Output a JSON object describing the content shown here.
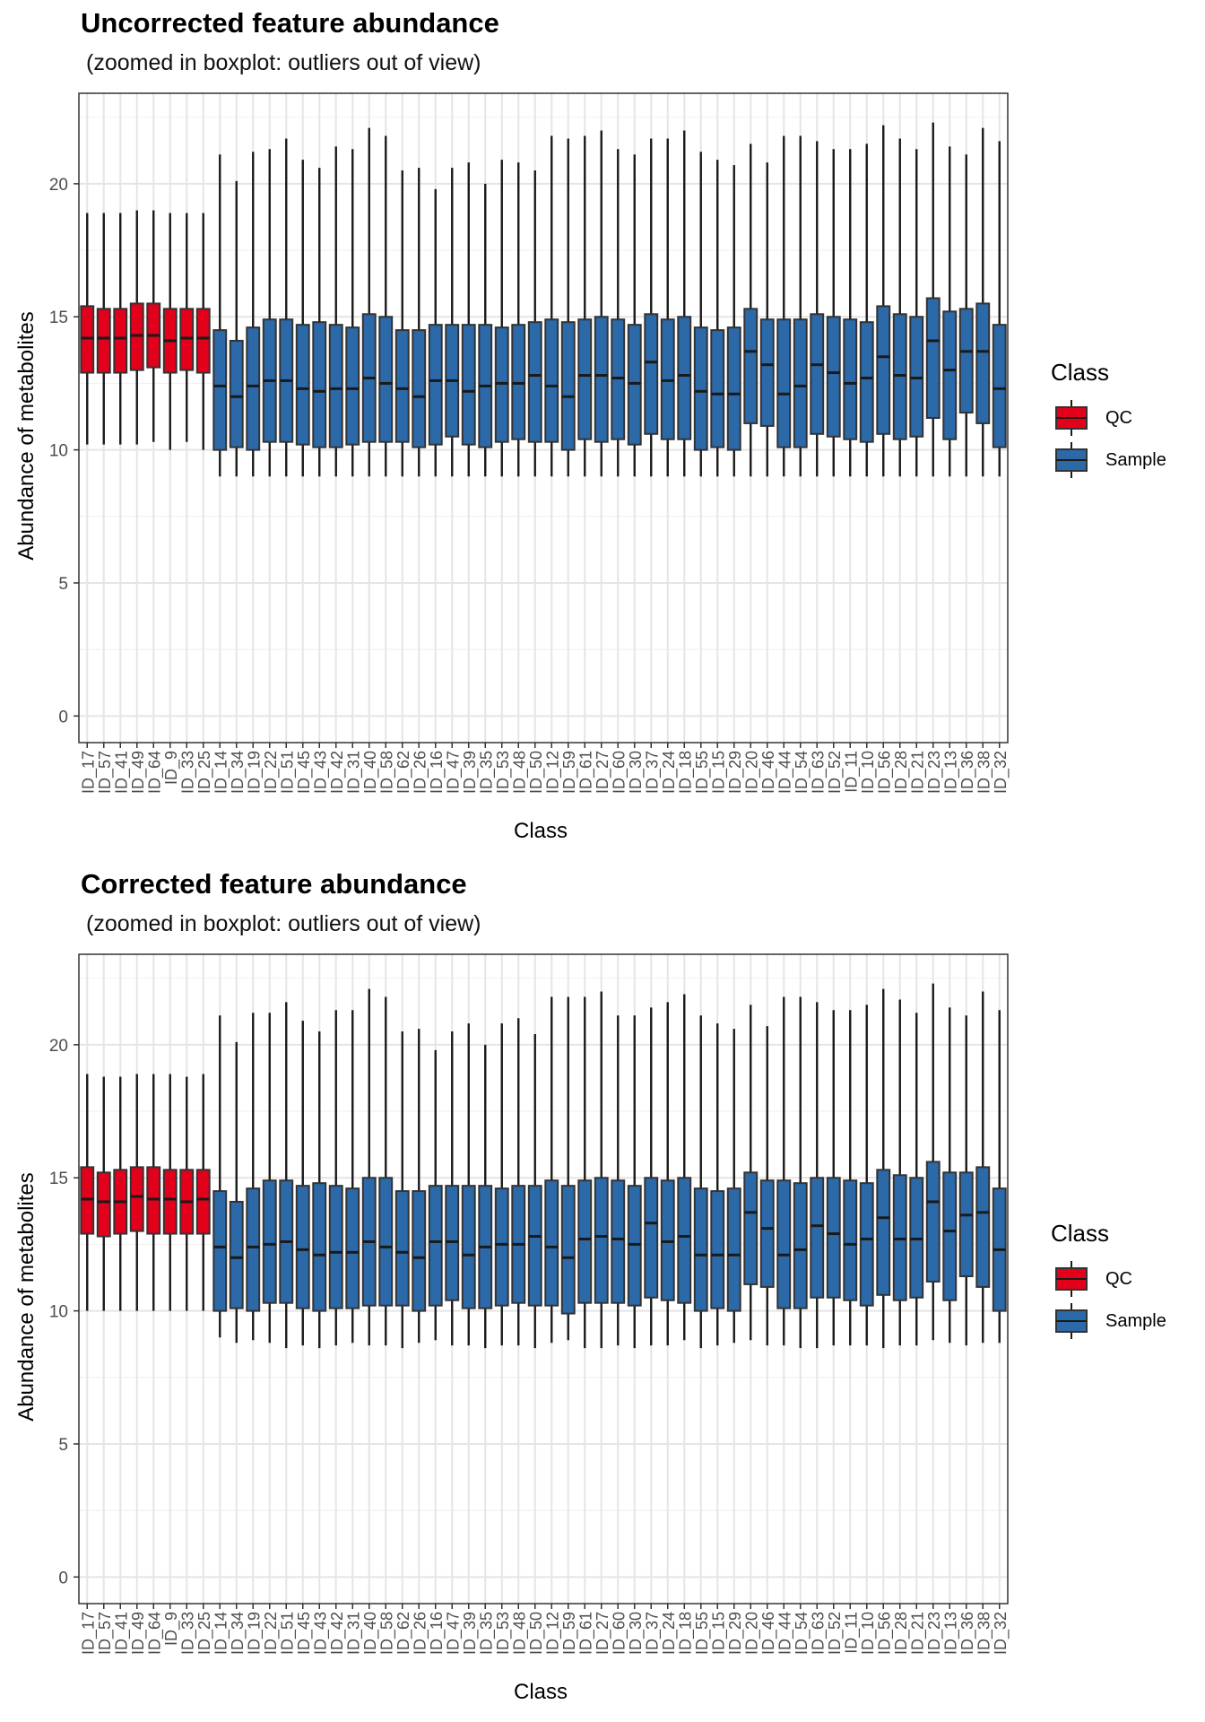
{
  "charts": [
    {
      "title": "Uncorrected feature abundance",
      "subtitle": "(zoomed in boxplot: outliers out of view)",
      "chart_data": {
        "type": "boxplot",
        "xlabel": "Class",
        "ylabel": "Abundance of metabolites",
        "ylim": [
          -1,
          23.4
        ],
        "yticks": [
          0,
          5,
          10,
          15,
          20
        ],
        "grid": true,
        "legend": {
          "title": "Class",
          "position": "right",
          "entries": [
            {
              "label": "QC",
              "color": "#e3001b"
            },
            {
              "label": "Sample",
              "color": "#2b69a9"
            }
          ]
        },
        "categories": [
          "ID_17",
          "ID_57",
          "ID_41",
          "ID_49",
          "ID_64",
          "ID_9",
          "ID_33",
          "ID_25",
          "ID_14",
          "ID_34",
          "ID_19",
          "ID_22",
          "ID_51",
          "ID_45",
          "ID_43",
          "ID_42",
          "ID_31",
          "ID_40",
          "ID_58",
          "ID_62",
          "ID_26",
          "ID_16",
          "ID_47",
          "ID_39",
          "ID_35",
          "ID_53",
          "ID_48",
          "ID_50",
          "ID_12",
          "ID_59",
          "ID_61",
          "ID_27",
          "ID_60",
          "ID_30",
          "ID_37",
          "ID_24",
          "ID_18",
          "ID_55",
          "ID_15",
          "ID_29",
          "ID_20",
          "ID_46",
          "ID_44",
          "ID_54",
          "ID_63",
          "ID_52",
          "ID_11",
          "ID_10",
          "ID_56",
          "ID_28",
          "ID_21",
          "ID_23",
          "ID_13",
          "ID_36",
          "ID_38",
          "ID_32"
        ],
        "classes": [
          "QC",
          "QC",
          "QC",
          "QC",
          "QC",
          "QC",
          "QC",
          "QC",
          "Sample",
          "Sample",
          "Sample",
          "Sample",
          "Sample",
          "Sample",
          "Sample",
          "Sample",
          "Sample",
          "Sample",
          "Sample",
          "Sample",
          "Sample",
          "Sample",
          "Sample",
          "Sample",
          "Sample",
          "Sample",
          "Sample",
          "Sample",
          "Sample",
          "Sample",
          "Sample",
          "Sample",
          "Sample",
          "Sample",
          "Sample",
          "Sample",
          "Sample",
          "Sample",
          "Sample",
          "Sample",
          "Sample",
          "Sample",
          "Sample",
          "Sample",
          "Sample",
          "Sample",
          "Sample",
          "Sample",
          "Sample",
          "Sample",
          "Sample",
          "Sample",
          "Sample",
          "Sample",
          "Sample",
          "Sample"
        ],
        "whisker_low": [
          10.2,
          10.2,
          10.2,
          10.2,
          10.3,
          10.0,
          10.3,
          10.0,
          9.0,
          9.0,
          9.0,
          9.0,
          9.0,
          9.0,
          9.0,
          9.0,
          9.0,
          9.0,
          9.0,
          9.0,
          9.0,
          9.0,
          9.0,
          9.0,
          9.0,
          9.0,
          9.0,
          9.0,
          9.0,
          9.0,
          9.0,
          9.0,
          9.0,
          9.0,
          9.0,
          9.0,
          9.0,
          9.0,
          9.0,
          9.0,
          9.0,
          9.0,
          9.0,
          9.0,
          9.0,
          9.0,
          9.0,
          9.0,
          9.0,
          9.0,
          9.0,
          9.0,
          9.0,
          9.0,
          9.0,
          9.0
        ],
        "q1": [
          12.9,
          12.9,
          12.9,
          13.0,
          13.1,
          12.9,
          13.0,
          12.9,
          10.0,
          10.1,
          10.0,
          10.3,
          10.3,
          10.2,
          10.1,
          10.1,
          10.2,
          10.3,
          10.3,
          10.3,
          10.1,
          10.2,
          10.5,
          10.2,
          10.1,
          10.3,
          10.4,
          10.3,
          10.3,
          10.0,
          10.4,
          10.3,
          10.4,
          10.2,
          10.6,
          10.4,
          10.4,
          10.0,
          10.1,
          10.0,
          11.0,
          10.9,
          10.1,
          10.1,
          10.6,
          10.5,
          10.4,
          10.3,
          10.6,
          10.4,
          10.5,
          11.2,
          10.4,
          11.4,
          11.0,
          10.1
        ],
        "median": [
          14.2,
          14.2,
          14.2,
          14.3,
          14.3,
          14.1,
          14.2,
          14.2,
          12.4,
          12.0,
          12.4,
          12.6,
          12.6,
          12.3,
          12.2,
          12.3,
          12.3,
          12.7,
          12.5,
          12.3,
          12.0,
          12.6,
          12.6,
          12.2,
          12.4,
          12.5,
          12.5,
          12.8,
          12.4,
          12.0,
          12.8,
          12.8,
          12.7,
          12.5,
          13.3,
          12.6,
          12.8,
          12.2,
          12.1,
          12.1,
          13.7,
          13.2,
          12.1,
          12.4,
          13.2,
          12.9,
          12.5,
          12.7,
          13.5,
          12.8,
          12.7,
          14.1,
          13.0,
          13.7,
          13.7,
          12.3
        ],
        "q3": [
          15.4,
          15.3,
          15.3,
          15.5,
          15.5,
          15.3,
          15.3,
          15.3,
          14.5,
          14.1,
          14.6,
          14.9,
          14.9,
          14.7,
          14.8,
          14.7,
          14.6,
          15.1,
          15.0,
          14.5,
          14.5,
          14.7,
          14.7,
          14.7,
          14.7,
          14.6,
          14.7,
          14.8,
          14.9,
          14.8,
          14.9,
          15.0,
          14.9,
          14.7,
          15.1,
          14.9,
          15.0,
          14.6,
          14.5,
          14.6,
          15.3,
          14.9,
          14.9,
          14.9,
          15.1,
          15.0,
          14.9,
          14.8,
          15.4,
          15.1,
          15.0,
          15.7,
          15.2,
          15.3,
          15.5,
          14.7
        ],
        "whisker_high": [
          18.9,
          18.9,
          18.9,
          19.0,
          19.0,
          18.9,
          18.9,
          18.9,
          21.1,
          20.1,
          21.2,
          21.3,
          21.7,
          20.9,
          20.6,
          21.4,
          21.3,
          22.1,
          21.8,
          20.5,
          20.6,
          19.8,
          20.6,
          20.8,
          20.0,
          20.9,
          20.8,
          20.5,
          21.8,
          21.7,
          21.8,
          22.0,
          21.3,
          21.1,
          21.7,
          21.7,
          22.0,
          21.2,
          20.9,
          20.7,
          21.5,
          20.8,
          21.8,
          21.8,
          21.6,
          21.3,
          21.3,
          21.5,
          22.2,
          21.7,
          21.3,
          22.3,
          21.4,
          21.1,
          22.1,
          21.6
        ]
      }
    },
    {
      "title": "Corrected feature abundance",
      "subtitle": "(zoomed in boxplot: outliers out of view)",
      "chart_data": {
        "type": "boxplot",
        "xlabel": "Class",
        "ylabel": "Abundance of metabolites",
        "ylim": [
          -1,
          23.4
        ],
        "yticks": [
          0,
          5,
          10,
          15,
          20
        ],
        "grid": true,
        "legend": {
          "title": "Class",
          "position": "right",
          "entries": [
            {
              "label": "QC",
              "color": "#e3001b"
            },
            {
              "label": "Sample",
              "color": "#2b69a9"
            }
          ]
        },
        "categories": [
          "ID_17",
          "ID_57",
          "ID_41",
          "ID_49",
          "ID_64",
          "ID_9",
          "ID_33",
          "ID_25",
          "ID_14",
          "ID_34",
          "ID_19",
          "ID_22",
          "ID_51",
          "ID_45",
          "ID_43",
          "ID_42",
          "ID_31",
          "ID_40",
          "ID_58",
          "ID_62",
          "ID_26",
          "ID_16",
          "ID_47",
          "ID_39",
          "ID_35",
          "ID_53",
          "ID_48",
          "ID_50",
          "ID_12",
          "ID_59",
          "ID_61",
          "ID_27",
          "ID_60",
          "ID_30",
          "ID_37",
          "ID_24",
          "ID_18",
          "ID_55",
          "ID_15",
          "ID_29",
          "ID_20",
          "ID_46",
          "ID_44",
          "ID_54",
          "ID_63",
          "ID_52",
          "ID_11",
          "ID_10",
          "ID_56",
          "ID_28",
          "ID_21",
          "ID_23",
          "ID_13",
          "ID_36",
          "ID_38",
          "ID_32"
        ],
        "classes": [
          "QC",
          "QC",
          "QC",
          "QC",
          "QC",
          "QC",
          "QC",
          "QC",
          "Sample",
          "Sample",
          "Sample",
          "Sample",
          "Sample",
          "Sample",
          "Sample",
          "Sample",
          "Sample",
          "Sample",
          "Sample",
          "Sample",
          "Sample",
          "Sample",
          "Sample",
          "Sample",
          "Sample",
          "Sample",
          "Sample",
          "Sample",
          "Sample",
          "Sample",
          "Sample",
          "Sample",
          "Sample",
          "Sample",
          "Sample",
          "Sample",
          "Sample",
          "Sample",
          "Sample",
          "Sample",
          "Sample",
          "Sample",
          "Sample",
          "Sample",
          "Sample",
          "Sample",
          "Sample",
          "Sample",
          "Sample",
          "Sample",
          "Sample",
          "Sample",
          "Sample",
          "Sample",
          "Sample",
          "Sample"
        ],
        "whisker_low": [
          10.0,
          10.0,
          10.0,
          10.0,
          10.0,
          10.0,
          10.0,
          10.0,
          9.0,
          8.8,
          8.9,
          8.8,
          8.6,
          8.7,
          8.6,
          8.7,
          8.8,
          8.7,
          8.7,
          8.6,
          8.8,
          8.9,
          8.7,
          8.7,
          8.6,
          8.7,
          8.7,
          8.6,
          8.8,
          8.9,
          8.6,
          8.6,
          8.7,
          8.6,
          8.7,
          8.7,
          8.9,
          8.6,
          8.7,
          8.8,
          8.9,
          8.7,
          8.7,
          8.6,
          8.6,
          8.7,
          8.7,
          8.7,
          8.6,
          8.7,
          8.7,
          8.9,
          8.8,
          8.7,
          8.8,
          8.8
        ],
        "q1": [
          12.9,
          12.8,
          12.9,
          13.0,
          12.9,
          12.9,
          12.9,
          12.9,
          10.0,
          10.1,
          10.0,
          10.3,
          10.3,
          10.1,
          10.0,
          10.1,
          10.1,
          10.2,
          10.2,
          10.2,
          10.0,
          10.2,
          10.4,
          10.1,
          10.1,
          10.2,
          10.3,
          10.2,
          10.2,
          9.9,
          10.3,
          10.3,
          10.3,
          10.2,
          10.5,
          10.4,
          10.3,
          10.0,
          10.1,
          10.0,
          11.0,
          10.9,
          10.1,
          10.1,
          10.5,
          10.5,
          10.4,
          10.2,
          10.6,
          10.4,
          10.5,
          11.1,
          10.4,
          11.3,
          10.9,
          10.0
        ],
        "median": [
          14.2,
          14.1,
          14.1,
          14.3,
          14.2,
          14.2,
          14.1,
          14.2,
          12.4,
          12.0,
          12.4,
          12.5,
          12.6,
          12.3,
          12.1,
          12.2,
          12.2,
          12.6,
          12.4,
          12.2,
          12.0,
          12.6,
          12.6,
          12.1,
          12.4,
          12.5,
          12.5,
          12.8,
          12.4,
          12.0,
          12.7,
          12.8,
          12.7,
          12.5,
          13.3,
          12.6,
          12.8,
          12.1,
          12.1,
          12.1,
          13.7,
          13.1,
          12.1,
          12.3,
          13.2,
          12.9,
          12.5,
          12.7,
          13.5,
          12.7,
          12.7,
          14.1,
          13.0,
          13.6,
          13.7,
          12.3
        ],
        "q3": [
          15.4,
          15.2,
          15.3,
          15.4,
          15.4,
          15.3,
          15.3,
          15.3,
          14.5,
          14.1,
          14.6,
          14.9,
          14.9,
          14.7,
          14.8,
          14.7,
          14.6,
          15.0,
          15.0,
          14.5,
          14.5,
          14.7,
          14.7,
          14.7,
          14.7,
          14.6,
          14.7,
          14.7,
          14.9,
          14.7,
          14.9,
          15.0,
          14.9,
          14.7,
          15.0,
          14.9,
          15.0,
          14.6,
          14.5,
          14.6,
          15.2,
          14.9,
          14.9,
          14.8,
          15.0,
          15.0,
          14.9,
          14.8,
          15.3,
          15.1,
          15.0,
          15.6,
          15.2,
          15.2,
          15.4,
          14.6
        ],
        "whisker_high": [
          18.9,
          18.8,
          18.8,
          18.9,
          18.9,
          18.9,
          18.8,
          18.9,
          21.1,
          20.1,
          21.2,
          21.2,
          21.6,
          20.9,
          20.5,
          21.3,
          21.3,
          22.1,
          21.8,
          20.5,
          20.6,
          19.8,
          20.5,
          20.8,
          20.0,
          20.8,
          21.0,
          20.4,
          21.8,
          21.8,
          21.8,
          22.0,
          21.1,
          21.1,
          21.4,
          21.6,
          21.9,
          21.1,
          20.8,
          20.6,
          21.5,
          20.7,
          21.8,
          21.8,
          21.6,
          21.3,
          21.3,
          21.5,
          22.1,
          21.7,
          21.2,
          22.3,
          21.4,
          21.1,
          22.0,
          21.3
        ]
      }
    }
  ]
}
